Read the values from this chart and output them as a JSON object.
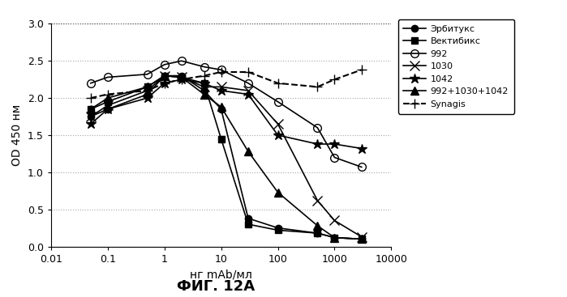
{
  "title": "ФИГ. 12А",
  "xlabel": "нг mAb/мл",
  "ylabel": "OD 450 нм",
  "xlim": [
    0.01,
    10000
  ],
  "ylim": [
    0,
    3.0
  ],
  "series": {
    "Эрбитукс": {
      "x": [
        0.05,
        0.1,
        0.5,
        1.0,
        2.0,
        5.0,
        10,
        30,
        100,
        500,
        1000,
        3000
      ],
      "y": [
        1.75,
        1.85,
        2.05,
        2.3,
        2.3,
        2.1,
        1.85,
        0.38,
        0.25,
        0.18,
        0.12,
        0.1
      ],
      "color": "#000000",
      "marker": "o",
      "markersize": 6,
      "linestyle": "-",
      "linewidth": 1.2,
      "fillstyle": "full"
    },
    "Вектибикс": {
      "x": [
        0.05,
        0.1,
        0.5,
        1.0,
        2.0,
        5.0,
        10,
        30,
        100,
        500,
        1000,
        3000
      ],
      "y": [
        1.85,
        1.95,
        2.15,
        2.3,
        2.28,
        2.2,
        1.45,
        0.3,
        0.22,
        0.18,
        0.12,
        0.1
      ],
      "color": "#000000",
      "marker": "s",
      "markersize": 6,
      "linestyle": "-",
      "linewidth": 1.2,
      "fillstyle": "full"
    },
    "992": {
      "x": [
        0.05,
        0.1,
        0.5,
        1.0,
        2.0,
        5.0,
        10,
        30,
        100,
        500,
        1000,
        3000
      ],
      "y": [
        2.2,
        2.28,
        2.32,
        2.45,
        2.5,
        2.42,
        2.38,
        2.2,
        1.95,
        1.6,
        1.2,
        1.07
      ],
      "color": "#000000",
      "marker": "o",
      "markersize": 7,
      "linestyle": "-",
      "linewidth": 1.2,
      "fillstyle": "none"
    },
    "1030": {
      "x": [
        0.05,
        0.1,
        0.5,
        1.0,
        2.0,
        5.0,
        10,
        30,
        100,
        500,
        1000,
        3000
      ],
      "y": [
        1.75,
        1.9,
        2.1,
        2.3,
        2.28,
        2.15,
        2.15,
        2.1,
        1.65,
        0.62,
        0.35,
        0.13
      ],
      "color": "#000000",
      "marker": "x",
      "markersize": 8,
      "linestyle": "-",
      "linewidth": 1.2,
      "fillstyle": "full"
    },
    "1042": {
      "x": [
        0.05,
        0.1,
        0.5,
        1.0,
        2.0,
        5.0,
        10,
        30,
        100,
        500,
        1000,
        3000
      ],
      "y": [
        1.65,
        1.85,
        2.0,
        2.2,
        2.25,
        2.2,
        2.1,
        2.05,
        1.5,
        1.38,
        1.38,
        1.32
      ],
      "color": "#000000",
      "marker": "*",
      "markersize": 9,
      "linestyle": "-",
      "linewidth": 1.2,
      "fillstyle": "full"
    },
    "992+1030+1042": {
      "x": [
        0.05,
        0.1,
        0.5,
        1.0,
        2.0,
        5.0,
        10,
        30,
        100,
        500,
        1000,
        3000
      ],
      "y": [
        1.85,
        2.0,
        2.15,
        2.3,
        2.28,
        2.05,
        1.88,
        1.28,
        0.73,
        0.28,
        0.12,
        0.1
      ],
      "color": "#000000",
      "marker": "^",
      "markersize": 7,
      "linestyle": "-",
      "linewidth": 1.2,
      "fillstyle": "full"
    },
    "Synagis": {
      "x": [
        0.05,
        0.1,
        0.5,
        1.0,
        2.0,
        5.0,
        10,
        30,
        100,
        500,
        1000,
        3000
      ],
      "y": [
        2.0,
        2.05,
        2.1,
        2.2,
        2.25,
        2.3,
        2.35,
        2.35,
        2.2,
        2.15,
        2.25,
        2.38
      ],
      "color": "#000000",
      "marker": "+",
      "markersize": 9,
      "linestyle": "--",
      "linewidth": 1.5,
      "fillstyle": "full"
    }
  }
}
